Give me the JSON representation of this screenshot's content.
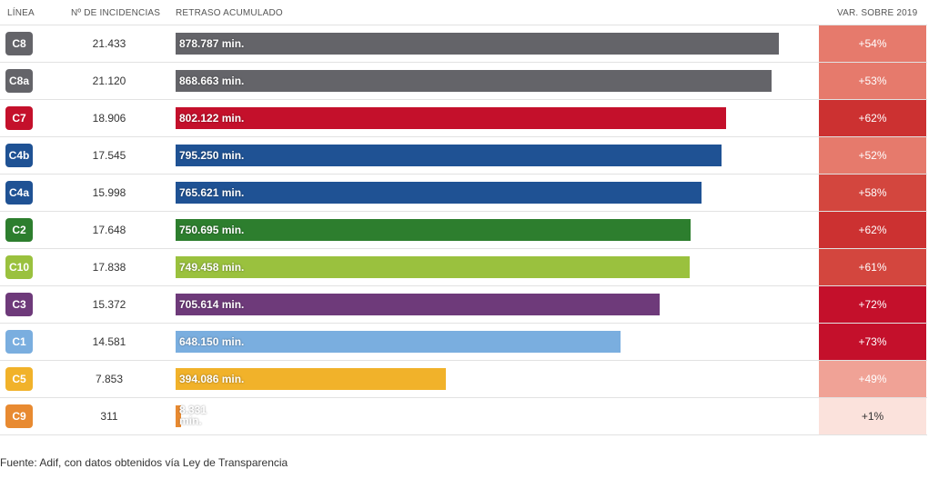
{
  "headers": {
    "line": "LÍNEA",
    "incidents": "Nº DE INCIDENCIAS",
    "delay": "RETRASO ACUMULADO",
    "variation": "VAR. SOBRE 2019"
  },
  "source": "Fuente: Adif, con datos obtenidos vía Ley de Transparencia",
  "chart_data": {
    "type": "bar",
    "orientation": "horizontal",
    "title": "",
    "xlabel": "RETRASO ACUMULADO",
    "ylabel": "LÍNEA",
    "unit": "min.",
    "xlim": [
      0,
      878787
    ],
    "categories": [
      "C8",
      "C8a",
      "C7",
      "C4b",
      "C4a",
      "C2",
      "C10",
      "C3",
      "C1",
      "C5",
      "C9"
    ],
    "values": [
      878787,
      868663,
      802122,
      795250,
      765621,
      750695,
      749458,
      705614,
      648150,
      394086,
      8331
    ],
    "rows": [
      {
        "line": "C8",
        "color": "#646469",
        "incidents": "21.433",
        "delay": 878787,
        "delay_label": "878.787 min.",
        "variation": "+54%",
        "variation_pct": 54
      },
      {
        "line": "C8a",
        "color": "#646469",
        "incidents": "21.120",
        "delay": 868663,
        "delay_label": "868.663 min.",
        "variation": "+53%",
        "variation_pct": 53
      },
      {
        "line": "C7",
        "color": "#c4102b",
        "incidents": "18.906",
        "delay": 802122,
        "delay_label": "802.122 min.",
        "variation": "+62%",
        "variation_pct": 62
      },
      {
        "line": "C4b",
        "color": "#1f5294",
        "incidents": "17.545",
        "delay": 795250,
        "delay_label": "795.250 min.",
        "variation": "+52%",
        "variation_pct": 52
      },
      {
        "line": "C4a",
        "color": "#1f5294",
        "incidents": "15.998",
        "delay": 765621,
        "delay_label": "765.621 min.",
        "variation": "+58%",
        "variation_pct": 58
      },
      {
        "line": "C2",
        "color": "#2d7e2e",
        "incidents": "17.648",
        "delay": 750695,
        "delay_label": "750.695 min.",
        "variation": "+62%",
        "variation_pct": 62
      },
      {
        "line": "C10",
        "color": "#9ac13e",
        "incidents": "17.838",
        "delay": 749458,
        "delay_label": "749.458 min.",
        "variation": "+61%",
        "variation_pct": 61
      },
      {
        "line": "C3",
        "color": "#6e3a7a",
        "incidents": "15.372",
        "delay": 705614,
        "delay_label": "705.614 min.",
        "variation": "+72%",
        "variation_pct": 72
      },
      {
        "line": "C1",
        "color": "#7aaedf",
        "incidents": "14.581",
        "delay": 648150,
        "delay_label": "648.150 min.",
        "variation": "+73%",
        "variation_pct": 73
      },
      {
        "line": "C5",
        "color": "#f1b22a",
        "incidents": "7.853",
        "delay": 394086,
        "delay_label": "394.086 min.",
        "variation": "+49%",
        "variation_pct": 49
      },
      {
        "line": "C9",
        "color": "#e88a31",
        "incidents": "311",
        "delay": 8331,
        "delay_label": "8.331 min.",
        "variation": "+1%",
        "variation_pct": 1
      }
    ],
    "variation_colors": {
      "low": "#fbe2dc",
      "light": "#f0a296",
      "medium": "#e67a6c",
      "strong": "#d3463e",
      "dark": "#cc3131",
      "darkest": "#c4102b"
    }
  }
}
